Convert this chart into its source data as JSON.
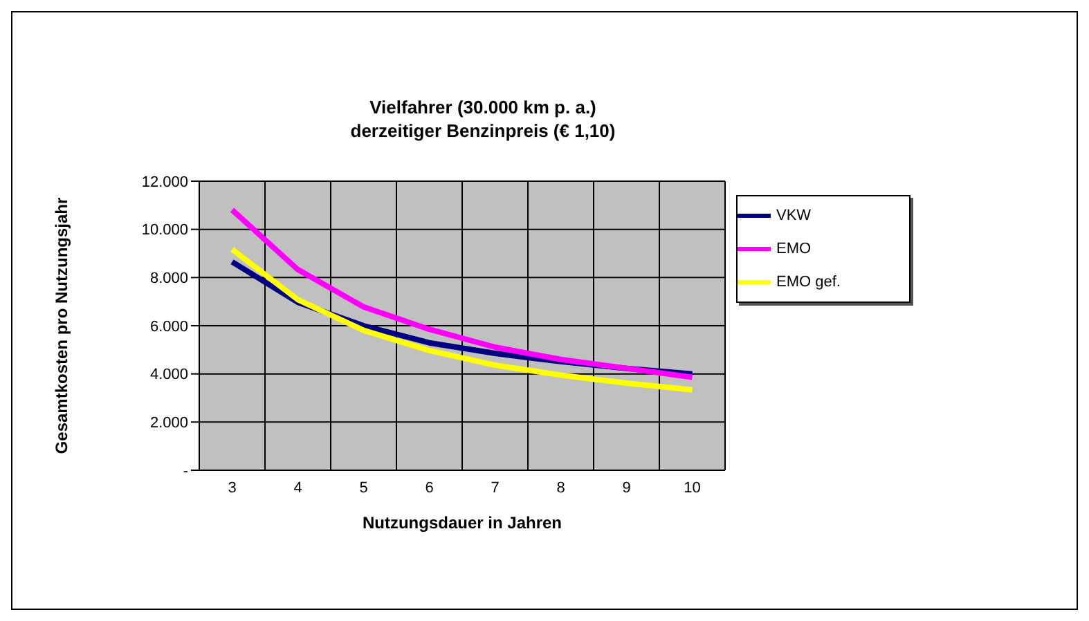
{
  "chart_data": {
    "type": "line",
    "title": "Vielfahrer (30.000 km p. a.)\nderzeitiger Benzinpreis (€ 1,10)",
    "xlabel": "Nutzungsdauer in Jahren",
    "ylabel": "Gesamtkosten pro Nutzungsjahr",
    "categories": [
      "3",
      "4",
      "5",
      "6",
      "7",
      "8",
      "9",
      "10"
    ],
    "series": [
      {
        "name": "VKW",
        "color": "#000080",
        "values": [
          8650,
          6970,
          6000,
          5290,
          4850,
          4510,
          4230,
          4000
        ]
      },
      {
        "name": "EMO",
        "color": "#ff00ff",
        "values": [
          10810,
          8330,
          6780,
          5850,
          5110,
          4600,
          4230,
          3860
        ]
      },
      {
        "name": "EMO gef.",
        "color": "#ffff00",
        "values": [
          9170,
          7080,
          5810,
          4970,
          4360,
          3950,
          3620,
          3340
        ]
      }
    ],
    "ylim": [
      0,
      12000
    ],
    "yticks": [
      {
        "value": 0,
        "label": "-"
      },
      {
        "value": 2000,
        "label": "2.000"
      },
      {
        "value": 4000,
        "label": "4.000"
      },
      {
        "value": 6000,
        "label": "6.000"
      },
      {
        "value": 8000,
        "label": "8.000"
      },
      {
        "value": 10000,
        "label": "10.000"
      },
      {
        "value": 12000,
        "label": "12.000"
      }
    ],
    "grid": true,
    "legend": "right",
    "marker": "none",
    "line_style": "solid"
  }
}
